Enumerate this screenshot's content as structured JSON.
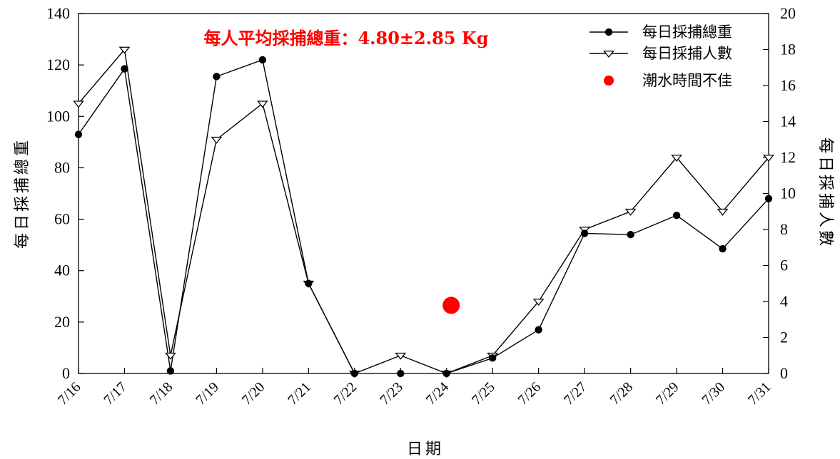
{
  "chart_data": {
    "type": "line",
    "annotation": "每人平均採捕總重：4.80±2.85 Kg",
    "annotation_color": "#ff0000",
    "xlabel": "日期",
    "ylabel_left": "每日採捕總重",
    "ylabel_right": "每日採捕人數",
    "categories": [
      "7/16",
      "7/17",
      "7/18",
      "7/19",
      "7/20",
      "7/21",
      "7/22",
      "7/23",
      "7/24",
      "7/25",
      "7/26",
      "7/27",
      "7/28",
      "7/29",
      "7/30",
      "7/31"
    ],
    "ylim_left": [
      0,
      140
    ],
    "ylim_right": [
      0,
      20
    ],
    "yticks_left": [
      0,
      20,
      40,
      60,
      80,
      100,
      120,
      140
    ],
    "yticks_right": [
      0,
      2,
      4,
      6,
      8,
      10,
      12,
      14,
      16,
      18,
      20
    ],
    "grid": false,
    "legend_position": "top-right",
    "series": [
      {
        "name": "每日採捕總重",
        "axis": "left",
        "marker": "filled-circle",
        "color": "#000000",
        "values": [
          93,
          118.5,
          1,
          115.5,
          122,
          35,
          0,
          0,
          0,
          6,
          17,
          54.5,
          54,
          61.5,
          48.5,
          68
        ],
        "connected": [
          true,
          true,
          true,
          true,
          true,
          true,
          true,
          false,
          true,
          true,
          true,
          true,
          true,
          true,
          true,
          true
        ]
      },
      {
        "name": "每日採捕人數",
        "axis": "right",
        "marker": "open-triangle-down",
        "color": "#000000",
        "values": [
          15,
          18,
          1,
          13,
          15,
          5,
          0,
          1,
          0,
          1,
          4,
          8,
          9,
          12,
          9,
          12
        ]
      },
      {
        "name": "潮水時間不佳",
        "axis": "left",
        "marker": "filled-circle-large",
        "color": "#ff0000",
        "points": [
          {
            "x": 8.1,
            "y": 26.5
          }
        ]
      }
    ]
  }
}
